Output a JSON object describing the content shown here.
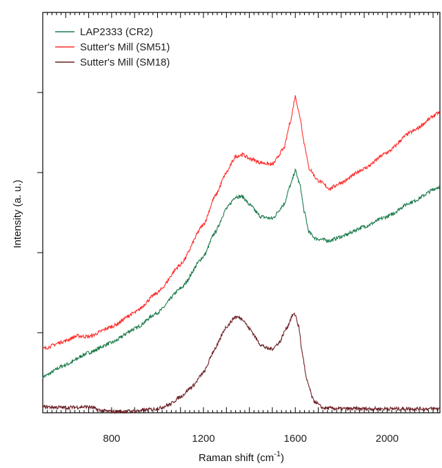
{
  "chart_data": {
    "type": "line",
    "xlabel": "Raman shift (cm",
    "xlabel_sup": "-1",
    "xlabel_close": ")",
    "ylabel": "Intensity (a. u.)",
    "xlim": [
      500,
      2230
    ],
    "ylim": [
      0,
      100
    ],
    "x_ticks": [
      "800",
      "1200",
      "1600",
      "2000"
    ],
    "y_ticks_unlabeled": [
      20,
      40,
      60,
      80
    ],
    "legend_position": "top-left",
    "series": [
      {
        "name": "LAP2333 (CR2)",
        "color": "#1a7a4a",
        "points": [
          [
            500,
            9
          ],
          [
            600,
            12
          ],
          [
            700,
            15
          ],
          [
            800,
            17.5
          ],
          [
            900,
            21
          ],
          [
            1000,
            25
          ],
          [
            1100,
            31
          ],
          [
            1200,
            39
          ],
          [
            1250,
            45
          ],
          [
            1300,
            51
          ],
          [
            1340,
            54
          ],
          [
            1370,
            54
          ],
          [
            1400,
            52
          ],
          [
            1450,
            49
          ],
          [
            1500,
            48.5
          ],
          [
            1550,
            52
          ],
          [
            1580,
            57
          ],
          [
            1600,
            60.5
          ],
          [
            1620,
            57
          ],
          [
            1640,
            50
          ],
          [
            1660,
            45
          ],
          [
            1690,
            43.5
          ],
          [
            1750,
            43
          ],
          [
            1800,
            44
          ],
          [
            1900,
            46.5
          ],
          [
            2000,
            49
          ],
          [
            2100,
            52.5
          ],
          [
            2230,
            56.5
          ]
        ]
      },
      {
        "name": "Sutter's Mill (SM51)",
        "color": "#ff2a2a",
        "points": [
          [
            500,
            16
          ],
          [
            600,
            18
          ],
          [
            650,
            19.2
          ],
          [
            700,
            19
          ],
          [
            800,
            21.5
          ],
          [
            900,
            25
          ],
          [
            1000,
            30
          ],
          [
            1100,
            37
          ],
          [
            1200,
            47
          ],
          [
            1250,
            54
          ],
          [
            1300,
            60
          ],
          [
            1340,
            64
          ],
          [
            1370,
            64.5
          ],
          [
            1400,
            63.5
          ],
          [
            1450,
            62.5
          ],
          [
            1500,
            62
          ],
          [
            1550,
            66
          ],
          [
            1580,
            73
          ],
          [
            1600,
            79
          ],
          [
            1620,
            74
          ],
          [
            1640,
            67
          ],
          [
            1660,
            61
          ],
          [
            1700,
            58
          ],
          [
            1750,
            56
          ],
          [
            1800,
            57.5
          ],
          [
            1900,
            61
          ],
          [
            2000,
            65
          ],
          [
            2100,
            70
          ],
          [
            2230,
            75
          ]
        ]
      },
      {
        "name": "Sutter's Mill (SM18)",
        "color": "#6b1e24",
        "points": [
          [
            500,
            1.5
          ],
          [
            600,
            1.3
          ],
          [
            700,
            1.5
          ],
          [
            760,
            0.5
          ],
          [
            800,
            0.3
          ],
          [
            900,
            0.4
          ],
          [
            1000,
            1
          ],
          [
            1050,
            2
          ],
          [
            1100,
            4
          ],
          [
            1150,
            6.5
          ],
          [
            1200,
            10
          ],
          [
            1250,
            16
          ],
          [
            1300,
            21.5
          ],
          [
            1340,
            24
          ],
          [
            1370,
            23.5
          ],
          [
            1400,
            21
          ],
          [
            1450,
            17
          ],
          [
            1480,
            16
          ],
          [
            1500,
            16
          ],
          [
            1530,
            17.5
          ],
          [
            1560,
            21
          ],
          [
            1590,
            24.5
          ],
          [
            1600,
            24.5
          ],
          [
            1615,
            21.5
          ],
          [
            1630,
            15
          ],
          [
            1650,
            8
          ],
          [
            1680,
            3
          ],
          [
            1720,
            1.2
          ],
          [
            1800,
            1
          ],
          [
            2000,
            1
          ],
          [
            2230,
            1
          ]
        ]
      }
    ]
  }
}
